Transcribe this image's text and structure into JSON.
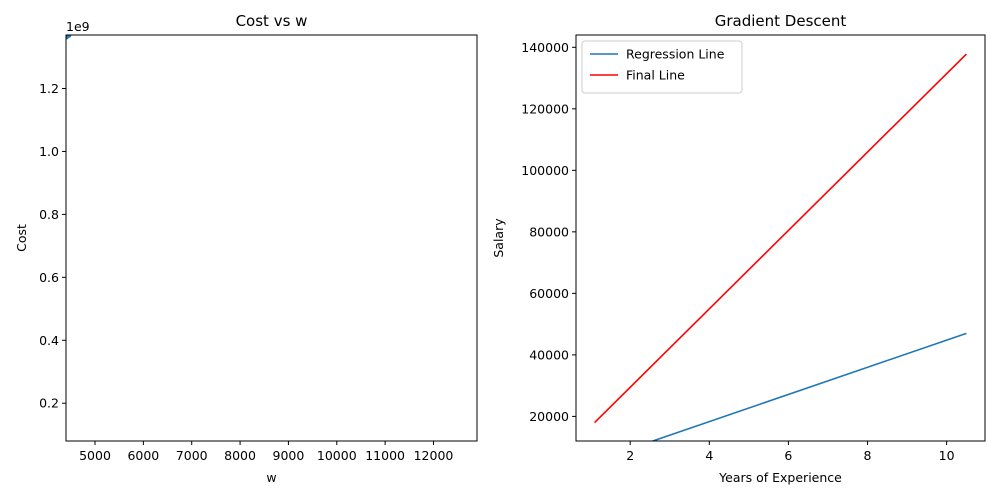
{
  "chart_data": [
    {
      "type": "scatter",
      "title": "Cost vs w",
      "xlabel": "w",
      "ylabel": "Cost",
      "offset_text": "1e9",
      "xlim": [
        4400,
        12900
      ],
      "ylim": [
        0.08,
        1.37
      ],
      "xticks": [
        5000,
        6000,
        7000,
        8000,
        9000,
        10000,
        11000,
        12000
      ],
      "yticks": [
        0.2,
        0.4,
        0.6,
        0.8,
        1.0,
        1.2
      ],
      "ytick_labels": [
        "0.2",
        "0.4",
        "0.6",
        "0.8",
        "1.0",
        "1.2"
      ],
      "series": [
        {
          "color": "#1f77b4",
          "points": [
            [
              4400,
              1.365
            ],
            [
              4450,
              1.37
            ]
          ]
        }
      ]
    },
    {
      "type": "line",
      "title": "Gradient Descent",
      "xlabel": "Years of Experience",
      "ylabel": "Salary",
      "xlim": [
        0.63,
        10.97
      ],
      "ylim": [
        12000,
        144000
      ],
      "xticks": [
        2,
        4,
        6,
        8,
        10
      ],
      "yticks": [
        20000,
        40000,
        60000,
        80000,
        100000,
        120000,
        140000
      ],
      "legend_position": "upper-left",
      "series": [
        {
          "name": "Regression Line",
          "color": "#1f77b4",
          "x": [
            1.1,
            10.5
          ],
          "y": [
            5500,
            47000
          ]
        },
        {
          "name": "Final Line",
          "color": "#ff0000",
          "x": [
            1.1,
            10.5
          ],
          "y": [
            18000,
            137800
          ]
        }
      ]
    }
  ]
}
